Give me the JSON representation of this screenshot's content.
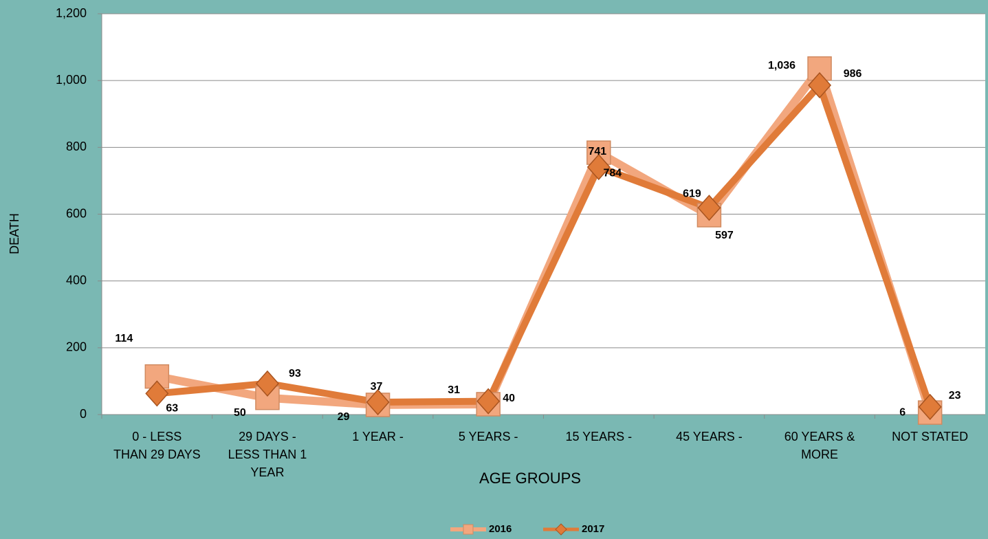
{
  "chart_data": {
    "type": "line",
    "x_label": "AGE GROUPS",
    "y_label": "DEATH",
    "categories": [
      "0 - LESS\nTHAN 29 DAYS",
      "29 DAYS -\nLESS THAN  1\nYEAR",
      "1 YEAR    -",
      "5 YEARS  -",
      "15 YEARS -",
      "45 YEARS  -",
      "60 YEARS &\nMORE",
      "NOT STATED"
    ],
    "series": [
      {
        "name": "2016",
        "color": "#f2a77e",
        "marker": "square",
        "values": [
          114,
          50,
          29,
          31,
          784,
          597,
          1036,
          6
        ]
      },
      {
        "name": "2017",
        "color": "#e07b39",
        "marker": "diamond",
        "values": [
          63,
          93,
          37,
          40,
          741,
          619,
          986,
          23
        ]
      }
    ],
    "ylim": [
      0,
      1200
    ],
    "yticks": [
      0,
      200,
      400,
      600,
      800,
      {
        "value": 1000,
        "label": "1,000"
      },
      {
        "value": 1200,
        "label": "1,200"
      }
    ],
    "grid": true,
    "legend": "bottom"
  }
}
